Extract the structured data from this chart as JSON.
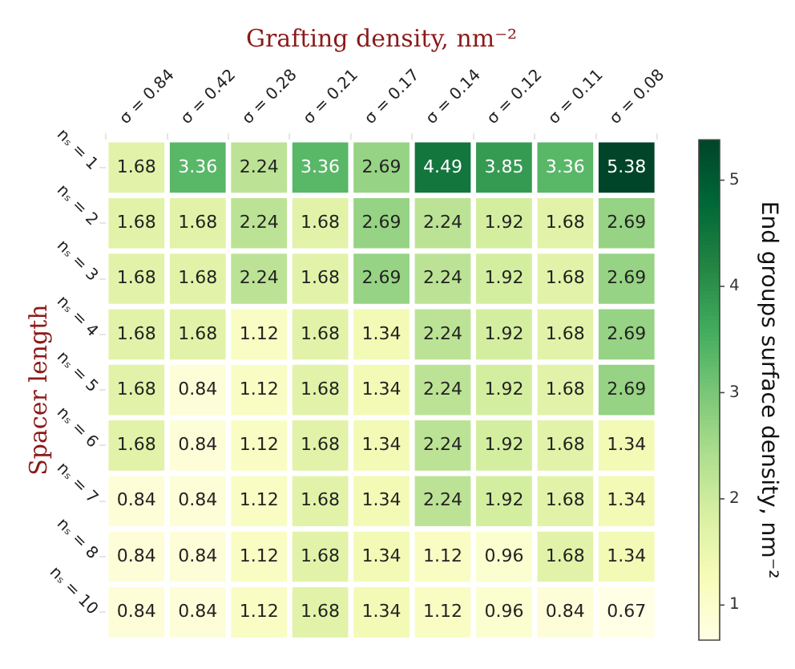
{
  "chart_data": {
    "type": "heatmap",
    "xlabel": "Grafting density, nm⁻²",
    "ylabel": "Spacer length",
    "clabel": "End groups surface density, nm⁻²",
    "categories": [
      "σ = 0.84",
      "σ = 0.42",
      "σ = 0.28",
      "σ = 0.21",
      "σ = 0.17",
      "σ = 0.14",
      "σ = 0.12",
      "σ = 0.11",
      "σ = 0.08"
    ],
    "y_categories": [
      "nₛ = 1",
      "nₛ = 2",
      "nₛ = 3",
      "nₛ = 4",
      "nₛ = 5",
      "nₛ = 6",
      "nₛ = 7",
      "nₛ = 8",
      "nₛ = 10"
    ],
    "cells": [
      [
        1.68,
        3.36,
        2.24,
        3.36,
        2.69,
        4.49,
        3.85,
        3.36,
        5.38
      ],
      [
        1.68,
        1.68,
        2.24,
        1.68,
        2.69,
        2.24,
        1.92,
        1.68,
        2.69
      ],
      [
        1.68,
        1.68,
        2.24,
        1.68,
        2.69,
        2.24,
        1.92,
        1.68,
        2.69
      ],
      [
        1.68,
        1.68,
        1.12,
        1.68,
        1.34,
        2.24,
        1.92,
        1.68,
        2.69
      ],
      [
        1.68,
        0.84,
        1.12,
        1.68,
        1.34,
        2.24,
        1.92,
        1.68,
        2.69
      ],
      [
        1.68,
        0.84,
        1.12,
        1.68,
        1.34,
        2.24,
        1.92,
        1.68,
        1.34
      ],
      [
        0.84,
        0.84,
        1.12,
        1.68,
        1.34,
        2.24,
        1.92,
        1.68,
        1.34
      ],
      [
        0.84,
        0.84,
        1.12,
        1.68,
        1.34,
        1.12,
        0.96,
        1.68,
        1.34
      ],
      [
        0.84,
        0.84,
        1.12,
        1.68,
        1.34,
        1.12,
        0.96,
        0.84,
        0.67
      ]
    ],
    "data_labels": true,
    "clim": [
      0.67,
      5.38
    ],
    "cticks": [
      1,
      2,
      3,
      4,
      5
    ]
  }
}
